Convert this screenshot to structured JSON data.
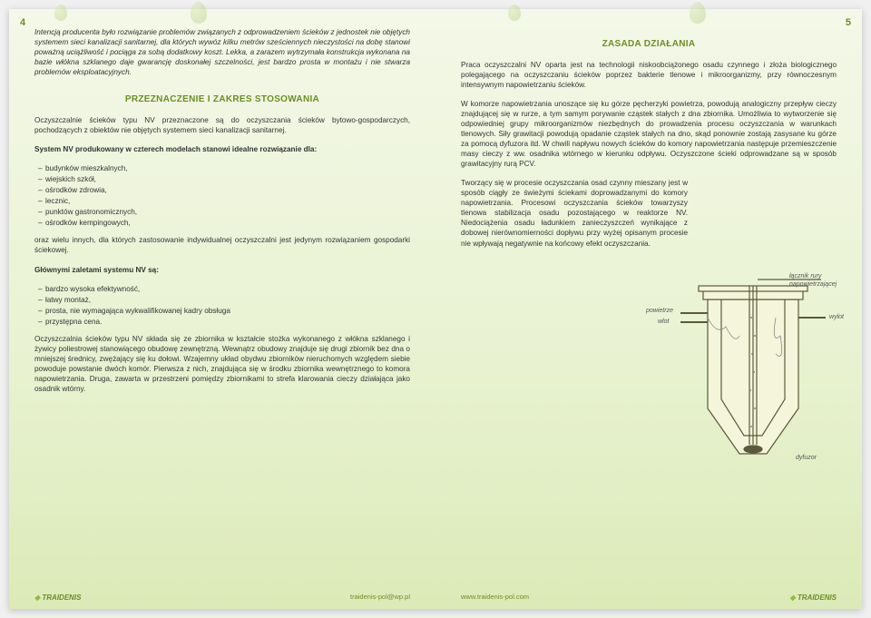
{
  "left": {
    "pageNum": "4",
    "intro": "Intencją producenta było rozwiązanie problemów związanych z odprowadzeniem ścieków z jednostek nie objętych systemem sieci kanalizacji sanitarnej, dla których wywóz kilku metrów sześciennych nieczystości na dobę stanowi poważną uciążliwość i pociąga za sobą dodatkowy koszt. Lekka, a zarazem wytrzymała konstrukcja wykonana na bazie włókna szklanego daje gwarancję doskonałej szczelności, jest bardzo prosta w montażu i nie stwarza problemów eksploatacyjnych.",
    "h1": "PRZEZNACZENIE I ZAKRES STOSOWANIA",
    "p1": "Oczyszczalnie ścieków typu NV przeznaczone są do oczyszczania ścieków bytowo-gospodarczych, pochodzących z obiektów nie objętych systemem sieci kanalizacji sanitarnej.",
    "p2": "System NV produkowany w czterech modelach stanowi idealne rozwiązanie dla:",
    "list1": [
      "budynków mieszkalnych,",
      "wiejskich szkół,",
      "ośrodków zdrowia,",
      "lecznic,",
      "punktów gastronomicznych,",
      "ośrodków kempingowych,"
    ],
    "p3": "oraz wielu innych, dla których zastosowanie indywidualnej oczyszczalni jest jedynym rozwiązaniem gospodarki ściekowej.",
    "p4": "Głównymi zaletami systemu NV są:",
    "list2": [
      "bardzo wysoka efektywność,",
      "łatwy montaż,",
      "prosta, nie wymagająca wykwalifikowanej kadry obsługa",
      "przystępna cena."
    ],
    "p5": "Oczyszczalnia ścieków typu NV składa się ze zbiornika w kształcie stożka wykonanego z włókna szklanego i żywicy poliestrowej stanowiącego obudowę zewnętrzną. Wewnątrz obudowy znajduje się drugi zbiornik bez dna o mniejszej średnicy, zwężający się ku dołowi. Wzajemny układ obydwu zbiorników nieruchomych względem siebie powoduje powstanie dwóch komór. Pierwsza z nich, znajdująca się w środku zbiornika wewnętrznego to komora napowietrzania. Druga, zawarta w przestrzeni pomiędzy zbiornikami to strefa klarowania cieczy działająca jako osadnik wtórny.",
    "footer": "traidenis-pol@wp.pl",
    "logo": "TRAIDENIS"
  },
  "right": {
    "pageNum": "5",
    "h1": "ZASADA DZIAŁANIA",
    "p1": "Praca oczyszczalni NV oparta jest na technologii niskoobciążonego osadu czynnego i złoża biologicznego polegającego na oczyszczaniu ścieków poprzez bakterie tlenowe i mikroorganizmy, przy równoczesnym intensywnym napowietrzaniu ścieków.",
    "p2": "W komorze napowietrzania unoszące się ku górze pęcherzyki powietrza, powodują analogiczny przepływ cieczy znajdującej się w rurze, a tym samym porywanie cząstek stałych z dna zbiornika. Umożliwia to wytworzenie się odpowiedniej grupy mikroorganizmów niezbędnych do prowadzenia procesu oczyszczania w warunkach tlenowych. Siły grawitacji powodują opadanie cząstek stałych na dno, skąd ponownie zostają zasysane ku górze za pomocą dyfuzora itd. W chwili napływu nowych ścieków do komory napowietrzania następuje przemieszczenie masy cieczy z ww. osadnika wtórnego w kierunku odpływu. Oczyszczone ścieki odprowadzane są w sposób grawitacyjny rurą PCV.",
    "p3": "Tworzący się w procesie oczyszczania osad czynny mieszany jest w sposób ciągły ze świeżymi ściekami doprowadzanymi do komory napowietrzania. Procesowi oczyszczania ścieków towarzyszy tlenowa stabilizacja osadu pozostającego w reaktorze NV. Niedociążenia osadu ładunkiem zanieczyszczeń wynikające z dobowej nierównomierności dopływu przy wyżej opisanym procesie nie wpływają negatywnie na końcowy efekt oczyszczania.",
    "labels": {
      "l1": "łącznik rury napowietrzającej",
      "l2": "powietrze",
      "l3": "wlot",
      "l4": "wylot",
      "l5": "dyfuzor"
    },
    "footer": "www.traidenis-pol.com",
    "logo": "TRAIDENIS"
  },
  "colors": {
    "accent": "#6b8e23",
    "diagram_stroke": "#5a5a3a",
    "diagram_fill": "#f5f5dc"
  }
}
